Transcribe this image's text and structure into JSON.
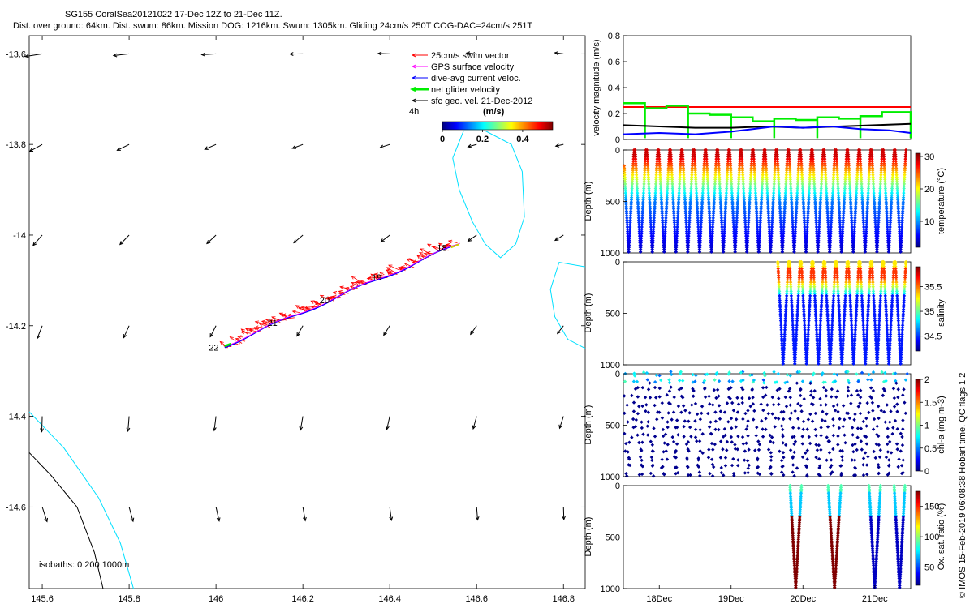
{
  "header": {
    "line1": "SG155 CoralSea20121022 17-Dec 12Z to 21-Dec 11Z.",
    "line2": "Dist. over ground: 64km. Dist. swum: 86km. Mission DOG: 1216km. Swum: 1305km. Gliding 24cm/s 250T COG-DAC=24cm/s 251T"
  },
  "watermark": "© IMOS 15-Feb-2019 06:08:38 Hobart time. QC flags 1  2",
  "colors": {
    "swim": "#ff0000",
    "gps": "#ff00ff",
    "dac": "#0000ff",
    "net": "#00ee00",
    "geo": "#000000",
    "isobath200": "#00e0ff",
    "isobath1000": "#000000"
  },
  "chart_data": [
    {
      "id": "track-map",
      "type": "scatter",
      "xlim": [
        145.57,
        146.85
      ],
      "ylim": [
        -14.78,
        -13.56
      ],
      "xticks": [
        145.6,
        145.8,
        146,
        146.2,
        146.4,
        146.6,
        146.8
      ],
      "yticks": [
        -13.6,
        -13.8,
        -14,
        -14.2,
        -14.4,
        -14.6
      ],
      "xtick_labels": [
        "145.6",
        "145.8",
        "146",
        "146.2",
        "146.4",
        "146.6",
        "146.8"
      ],
      "ytick_labels": [
        "-13.6",
        "-13.8",
        "-14",
        "-14.2",
        "-14.4",
        "-14.6"
      ],
      "legend": {
        "placement": "top-right",
        "entries": [
          {
            "name": "25cm/s swim vector",
            "color": "#ff0000"
          },
          {
            "name": "GPS surface velocity",
            "color": "#ff00ff"
          },
          {
            "name": "dive-avg current veloc.",
            "color": "#0000ff"
          },
          {
            "name": "net glider velocity",
            "color": "#00ee00"
          },
          {
            "name": "sfc geo. vel. 21-Dec-2012",
            "color": "#000000"
          }
        ],
        "note": "4h"
      },
      "colorbar": {
        "label": "(m/s)",
        "ticks": [
          0,
          0.2,
          0.4
        ],
        "tick_labels": [
          "0",
          "0.2",
          "0.4"
        ],
        "range": [
          0,
          0.55
        ]
      },
      "track": {
        "start": [
          146.56,
          -14.02
        ],
        "end": [
          146.02,
          -14.245
        ],
        "day_labels": [
          {
            "text": "18",
            "lon": 146.52,
            "lat": -14.035
          },
          {
            "text": "19",
            "lon": 146.37,
            "lat": -14.1
          },
          {
            "text": "20",
            "lon": 146.25,
            "lat": -14.15
          },
          {
            "text": "21",
            "lon": 146.13,
            "lat": -14.2
          },
          {
            "text": "22",
            "lon": 145.995,
            "lat": -14.255
          }
        ]
      },
      "geo_vector_grid": {
        "lons": [
          145.6,
          145.8,
          146.0,
          146.2,
          146.4,
          146.6,
          146.8
        ],
        "lats": [
          -13.6,
          -13.8,
          -14.0,
          -14.2,
          -14.4,
          -14.6
        ]
      },
      "isobaths": {
        "label": "isobaths: 0   200   1000m",
        "contour_200": [
          [
            [
              145.57,
              -14.39
            ],
            [
              145.65,
              -14.47
            ],
            [
              145.73,
              -14.58
            ],
            [
              145.78,
              -14.68
            ],
            [
              145.81,
              -14.78
            ]
          ],
          [
            [
              146.545,
              -13.83
            ],
            [
              146.56,
              -13.9
            ],
            [
              146.59,
              -13.97
            ],
            [
              146.62,
              -14.02
            ],
            [
              146.655,
              -14.05
            ],
            [
              146.69,
              -14.02
            ],
            [
              146.71,
              -13.96
            ],
            [
              146.705,
              -13.86
            ],
            [
              146.68,
              -13.8
            ],
            [
              146.62,
              -13.77
            ],
            [
              146.57,
              -13.77
            ],
            [
              146.545,
              -13.83
            ]
          ],
          [
            [
              146.85,
              -14.07
            ],
            [
              146.79,
              -14.06
            ],
            [
              146.77,
              -14.12
            ],
            [
              146.78,
              -14.18
            ],
            [
              146.81,
              -14.23
            ],
            [
              146.85,
              -14.25
            ]
          ]
        ],
        "contour_1000": [
          [
            [
              145.57,
              -14.48
            ],
            [
              145.62,
              -14.53
            ],
            [
              145.68,
              -14.6
            ],
            [
              145.72,
              -14.7
            ],
            [
              145.74,
              -14.78
            ]
          ]
        ]
      }
    },
    {
      "id": "velocity-panel",
      "type": "line",
      "ylabel": "velocity magnitude (m/s)",
      "ylim": [
        0,
        0.8
      ],
      "yticks": [
        0,
        0.2,
        0.4,
        0.6,
        0.8
      ],
      "ytick_labels": [
        "0",
        "0.2",
        "0.4",
        "0.6",
        "0.8"
      ],
      "xlim": [
        17.5,
        21.5
      ],
      "series": [
        {
          "color": "#ff0000",
          "x": [
            17.5,
            21.5
          ],
          "y": [
            0.25,
            0.25
          ]
        },
        {
          "color": "#00ee00",
          "x": [
            17.5,
            17.8,
            18.1,
            18.4,
            18.7,
            19.0,
            19.3,
            19.6,
            19.9,
            20.2,
            20.5,
            20.8,
            21.1,
            21.5
          ],
          "y": [
            0.28,
            0.24,
            0.26,
            0.2,
            0.19,
            0.17,
            0.14,
            0.16,
            0.15,
            0.17,
            0.16,
            0.18,
            0.21,
            0.2
          ]
        },
        {
          "color": "#000000",
          "x": [
            17.5,
            18.0,
            18.5,
            19.0,
            19.5,
            20.0,
            20.5,
            21.0,
            21.5
          ],
          "y": [
            0.11,
            0.1,
            0.09,
            0.09,
            0.1,
            0.09,
            0.1,
            0.11,
            0.12
          ]
        },
        {
          "color": "#0000ff",
          "x": [
            17.5,
            18.0,
            18.5,
            19.0,
            19.3,
            19.6,
            20.0,
            20.4,
            20.8,
            21.2,
            21.5
          ],
          "y": [
            0.04,
            0.05,
            0.04,
            0.06,
            0.08,
            0.1,
            0.09,
            0.1,
            0.08,
            0.07,
            0.05
          ]
        }
      ]
    },
    {
      "id": "temperature-panel",
      "type": "scatter",
      "ylabel": "Depth (m)",
      "cbar_label": "temperature (°C)",
      "ylim": [
        1000,
        0
      ],
      "xlim": [
        17.5,
        21.5
      ],
      "yticks": [
        0,
        500,
        1000
      ],
      "ytick_labels": [
        "0",
        "500",
        "1000"
      ],
      "cbar_range": [
        2,
        31
      ],
      "cbar_ticks": [
        10,
        20,
        30
      ],
      "cbar_tick_labels": [
        "10",
        "20",
        "30"
      ],
      "profiles": {
        "start": 17.5,
        "end": 21.45,
        "count": 24,
        "max_depth": 1000
      },
      "profile_fn": "temperature"
    },
    {
      "id": "salinity-panel",
      "type": "scatter",
      "ylabel": "Depth (m)",
      "cbar_label": "salinity",
      "ylim": [
        1000,
        0
      ],
      "xlim": [
        17.5,
        21.5
      ],
      "yticks": [
        0,
        500,
        1000
      ],
      "ytick_labels": [
        "0",
        "500",
        "1000"
      ],
      "cbar_range": [
        34.2,
        35.9
      ],
      "cbar_ticks": [
        34.5,
        35,
        35.5
      ],
      "cbar_tick_labels": [
        "34.5",
        "35",
        "35.5"
      ],
      "profiles": {
        "start": 19.65,
        "end": 21.45,
        "count": 11,
        "max_depth": 1000
      },
      "profile_fn": "salinity"
    },
    {
      "id": "chla-panel",
      "type": "scatter",
      "ylabel": "Depth (m)",
      "cbar_label": "chl-a (mg m-3)",
      "ylim": [
        1000,
        0
      ],
      "xlim": [
        17.5,
        21.5
      ],
      "yticks": [
        0,
        500,
        1000
      ],
      "ytick_labels": [
        "0",
        "500",
        "1000"
      ],
      "cbar_range": [
        0,
        2
      ],
      "cbar_ticks": [
        0,
        0.5,
        1,
        1.5,
        2
      ],
      "cbar_tick_labels": [
        "0",
        "0.5",
        "1",
        "1.5",
        "2"
      ],
      "profiles": {
        "start": 17.5,
        "end": 21.45,
        "count": 24,
        "max_depth": 1000
      },
      "profile_fn": "chla"
    },
    {
      "id": "oxygen-panel",
      "type": "scatter",
      "ylabel": "Depth (m)",
      "cbar_label": "Ox. sat. ratio (%)",
      "ylim": [
        1000,
        0
      ],
      "xlim": [
        17.5,
        21.5
      ],
      "yticks": [
        0,
        500,
        1000
      ],
      "ytick_labels": [
        "0",
        "500",
        "1000"
      ],
      "xticks": [
        18,
        19,
        20,
        21
      ],
      "xtick_labels": [
        "18Dec",
        "19Dec",
        "20Dec",
        "21Dec"
      ],
      "cbar_range": [
        20,
        175
      ],
      "cbar_ticks": [
        50,
        100,
        150
      ],
      "cbar_tick_labels": [
        "50",
        "100",
        "150"
      ],
      "profile_segments": [
        {
          "t0": 19.82,
          "t1": 19.98,
          "kind": "red"
        },
        {
          "t0": 20.35,
          "t1": 20.53,
          "kind": "red"
        },
        {
          "t0": 20.92,
          "t1": 21.08,
          "kind": "blue"
        },
        {
          "t0": 21.27,
          "t1": 21.42,
          "kind": "blue"
        }
      ]
    }
  ]
}
